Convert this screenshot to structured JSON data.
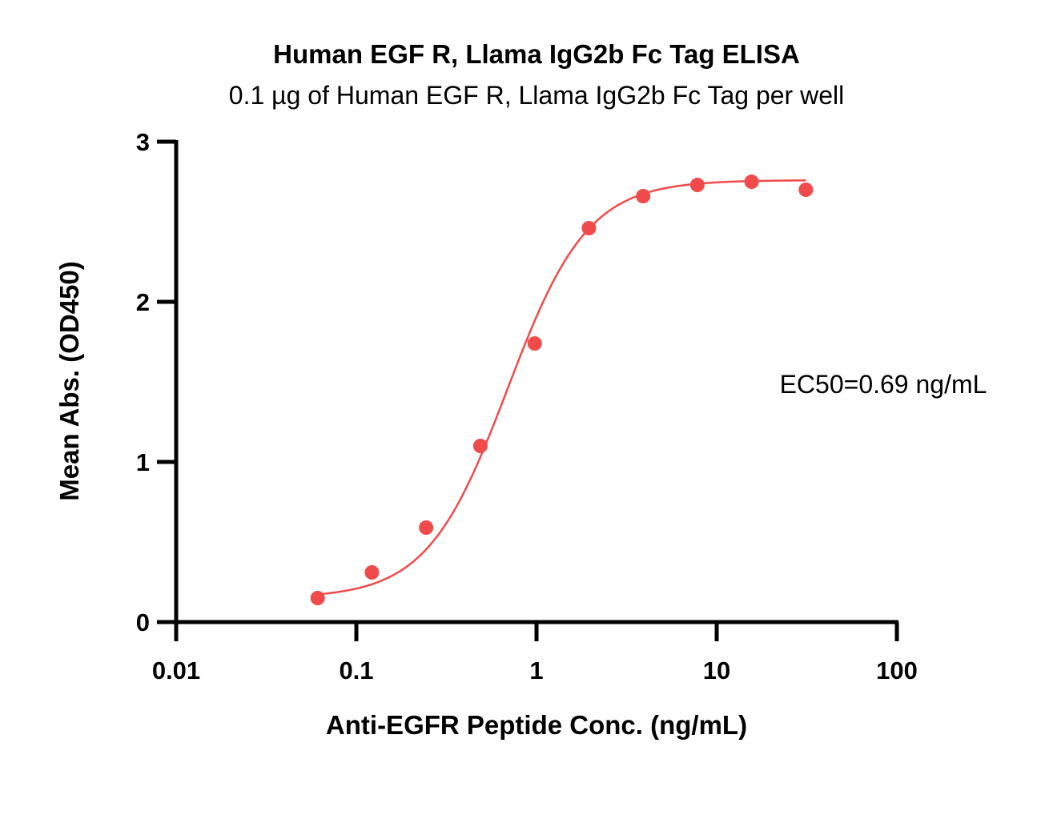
{
  "chart_data": {
    "type": "scatter",
    "title": "Human EGF R, Llama IgG2b Fc Tag ELISA",
    "subtitle": "0.1 µg of Human EGF R, Llama IgG2b Fc Tag per well",
    "xlabel": "Anti-EGFR Peptide Conc. (ng/mL)",
    "ylabel": "Mean Abs. (OD450)",
    "x_scale": "log",
    "xlim": [
      0.01,
      100
    ],
    "ylim": [
      0,
      3
    ],
    "x_ticks": [
      "0.01",
      "0.1",
      "1",
      "10",
      "100"
    ],
    "y_ticks": [
      "0",
      "1",
      "2",
      "3"
    ],
    "grid": false,
    "color": "#f04a4a",
    "annotation": "EC50=0.69 ng/mL",
    "points": {
      "x": [
        0.061,
        0.122,
        0.244,
        0.488,
        0.977,
        1.953,
        3.906,
        7.813,
        15.625,
        31.25
      ],
      "y": [
        0.15,
        0.31,
        0.59,
        1.1,
        1.74,
        2.46,
        2.66,
        2.73,
        2.75,
        2.7
      ]
    },
    "fit": {
      "model": "4PL",
      "bottom": 0.15,
      "top": 2.76,
      "ec50": 0.69,
      "hill": 1.95,
      "x_range": [
        0.061,
        31.25
      ]
    }
  }
}
